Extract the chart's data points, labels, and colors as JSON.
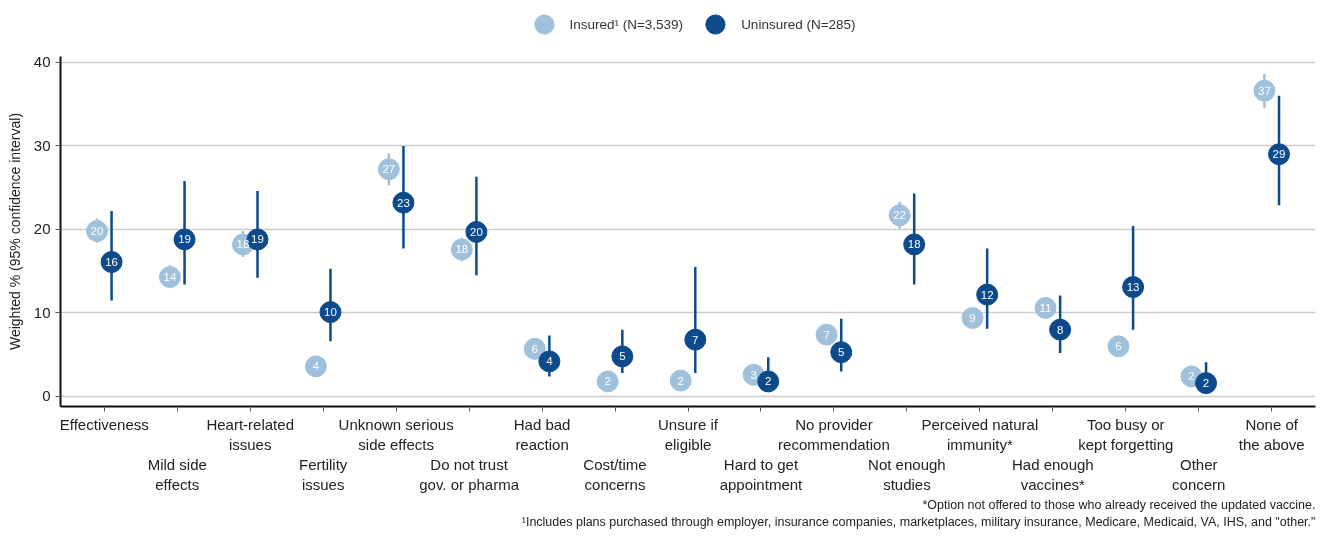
{
  "chart_data": {
    "type": "scatter",
    "ylabel": "Weighted % (95% confidence interval)",
    "annotations": [
      "*Option not offered to those who already received the updated vaccine.",
      "¹Includes plans purchased through employer, insurance companies, marketplaces, military insurance, Medicare, Medicaid, VA, IHS, and \"other.\""
    ],
    "categories": [
      "Effectiveness",
      "Mild side effects",
      "Heart-related issues",
      "Fertility issues",
      "Unknown serious side effects",
      "Do not trust gov. or pharma",
      "Had bad reaction",
      "Cost/time concerns",
      "Unsure if eligible",
      "Hard to get appointment",
      "No provider recommendation",
      "Not enough studies",
      "Perceived natural immunity*",
      "Had enough vaccines*",
      "Too busy or kept forgetting",
      "Other concern",
      "None of the above"
    ],
    "series": [
      {
        "name": "Insured¹ (N=3,539)",
        "color": "#a0c1dc",
        "values": [
          19.8,
          14.3,
          18.2,
          3.6,
          27.2,
          17.6,
          5.7,
          1.8,
          1.9,
          2.6,
          7.4,
          21.7,
          9.4,
          10.6,
          6.0,
          2.4,
          36.6
        ],
        "value_labels": [
          "20",
          "14",
          "18",
          "4",
          "27",
          "18",
          "6",
          "2",
          "2",
          "3",
          "7",
          "22",
          "9",
          "11",
          "6",
          "2",
          "37"
        ],
        "errors": [
          [
            18.4,
            21.3
          ],
          [
            13.1,
            15.7
          ],
          [
            16.7,
            19.8
          ],
          null,
          [
            25.3,
            29.1
          ],
          [
            16.2,
            19.0
          ],
          null,
          null,
          null,
          null,
          null,
          [
            20.1,
            23.3
          ],
          null,
          null,
          null,
          null,
          [
            34.5,
            38.6
          ]
        ]
      },
      {
        "name": "Uninsured (N=285)",
        "color": "#0c4a8c",
        "values": [
          16.1,
          18.8,
          18.8,
          10.1,
          23.2,
          19.7,
          4.2,
          4.8,
          6.8,
          1.8,
          5.3,
          18.2,
          12.2,
          8.0,
          13.1,
          1.6,
          29.0
        ],
        "value_labels": [
          "16",
          "19",
          "19",
          "10",
          "23",
          "20",
          "4",
          "5",
          "7",
          "2",
          "5",
          "18",
          "12",
          "8",
          "13",
          "2",
          "29"
        ],
        "errors": [
          [
            11.5,
            22.2
          ],
          [
            13.4,
            25.8
          ],
          [
            14.2,
            24.6
          ],
          [
            6.6,
            15.3
          ],
          [
            17.7,
            30.0
          ],
          [
            14.5,
            26.3
          ],
          [
            2.4,
            7.3
          ],
          [
            2.8,
            8.0
          ],
          [
            2.8,
            15.5
          ],
          [
            1.8,
            4.7
          ],
          [
            3.0,
            9.3
          ],
          [
            13.4,
            24.3
          ],
          [
            8.1,
            17.7
          ],
          [
            5.2,
            12.1
          ],
          [
            8.0,
            20.4
          ],
          [
            1.6,
            4.1
          ],
          [
            22.9,
            36.0
          ]
        ]
      }
    ],
    "ylim": [
      -1.2,
      40.7
    ],
    "yticks": [
      0,
      10,
      20,
      30,
      40
    ],
    "grid": "y",
    "legend": "top",
    "marker": "circle"
  }
}
